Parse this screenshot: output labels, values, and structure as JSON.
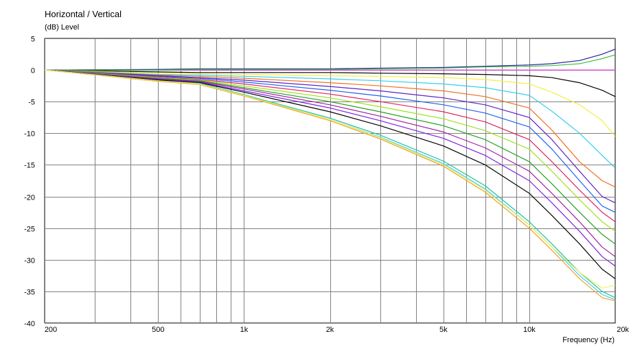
{
  "chart_data": {
    "type": "line",
    "title": "Horizontal / Vertical",
    "ylabel": "(dB)  Level",
    "xlabel": "Frequency  (Hz)",
    "x_scale": "log",
    "xlim": [
      200,
      20000
    ],
    "ylim": [
      -40,
      5
    ],
    "grid": true,
    "x_ticks": [
      {
        "value": 200,
        "label": "200"
      },
      {
        "value": 500,
        "label": "500"
      },
      {
        "value": 1000,
        "label": "1k"
      },
      {
        "value": 2000,
        "label": "2k"
      },
      {
        "value": 5000,
        "label": "5k"
      },
      {
        "value": 10000,
        "label": "10k"
      },
      {
        "value": 20000,
        "label": "20k"
      }
    ],
    "y_ticks": [
      {
        "value": 5,
        "label": "5"
      },
      {
        "value": 0,
        "label": "0"
      },
      {
        "value": -5,
        "label": "-5"
      },
      {
        "value": -10,
        "label": "-10"
      },
      {
        "value": -15,
        "label": "-15"
      },
      {
        "value": -20,
        "label": "-20"
      },
      {
        "value": -25,
        "label": "-25"
      },
      {
        "value": -30,
        "label": "-30"
      },
      {
        "value": -35,
        "label": "-35"
      },
      {
        "value": -40,
        "label": "-40"
      }
    ],
    "x_minor_grid": [
      300,
      400,
      600,
      700,
      800,
      900,
      3000,
      4000,
      6000,
      7000,
      8000,
      9000
    ],
    "x": [
      200,
      500,
      700,
      1000,
      2000,
      3000,
      5000,
      7000,
      10000,
      12000,
      15000,
      18000,
      20000
    ],
    "series": [
      {
        "color": "#e040e0",
        "values": [
          0,
          0,
          0,
          0,
          0,
          0,
          0,
          0,
          0,
          0,
          0,
          0,
          0
        ]
      },
      {
        "color": "#2020a0",
        "values": [
          0,
          0.1,
          0.2,
          0.2,
          0.2,
          0.3,
          0.4,
          0.6,
          0.8,
          1.0,
          1.5,
          2.5,
          3.3
        ]
      },
      {
        "color": "#40c040",
        "values": [
          0,
          0,
          0.1,
          0.1,
          0.1,
          0.2,
          0.3,
          0.5,
          0.6,
          0.7,
          1.0,
          1.8,
          2.4
        ]
      },
      {
        "color": "#000000",
        "values": [
          0,
          -0.3,
          -0.4,
          -0.4,
          -0.4,
          -0.5,
          -0.6,
          -0.7,
          -0.9,
          -1.2,
          -2.0,
          -3.2,
          -4.2
        ]
      },
      {
        "color": "#f0f040",
        "values": [
          0,
          -0.5,
          -0.6,
          -0.7,
          -0.9,
          -1.0,
          -1.2,
          -1.5,
          -2.2,
          -3.5,
          -5.5,
          -8.0,
          -10.5
        ]
      },
      {
        "color": "#30d0f0",
        "values": [
          0,
          -0.7,
          -0.8,
          -1.0,
          -1.4,
          -1.7,
          -2.2,
          -2.8,
          -4.0,
          -6.5,
          -10.0,
          -13.5,
          -15.5
        ]
      },
      {
        "color": "#f07020",
        "values": [
          0,
          -0.8,
          -1.0,
          -1.3,
          -2.0,
          -2.5,
          -3.3,
          -4.2,
          -6.0,
          -9.5,
          -14.5,
          -17.5,
          -18.5
        ]
      },
      {
        "color": "#6020c0",
        "values": [
          0,
          -0.9,
          -1.2,
          -1.6,
          -2.6,
          -3.3,
          -4.4,
          -5.5,
          -7.5,
          -11.0,
          -16.0,
          -20.0,
          -21.0
        ]
      },
      {
        "color": "#2060f0",
        "values": [
          0,
          -1.0,
          -1.3,
          -1.9,
          -3.2,
          -4.1,
          -5.5,
          -6.8,
          -9.0,
          -12.5,
          -17.5,
          -21.5,
          -22.5
        ]
      },
      {
        "color": "#e02060",
        "values": [
          0,
          -1.1,
          -1.5,
          -2.2,
          -3.8,
          -5.0,
          -6.6,
          -8.2,
          -11.0,
          -14.5,
          -19.0,
          -22.5,
          -24.0
        ]
      },
      {
        "color": "#a0e020",
        "values": [
          0,
          -1.2,
          -1.6,
          -2.5,
          -4.4,
          -5.8,
          -7.7,
          -9.6,
          -12.5,
          -16.0,
          -20.5,
          -24.0,
          -25.5
        ]
      },
      {
        "color": "#20a020",
        "values": [
          0,
          -1.3,
          -1.7,
          -2.8,
          -5.0,
          -6.6,
          -8.8,
          -11.0,
          -14.5,
          -18.0,
          -22.5,
          -26.0,
          -27.5
        ]
      },
      {
        "color": "#a020a0",
        "values": [
          0,
          -1.4,
          -1.8,
          -3.0,
          -5.5,
          -7.3,
          -9.8,
          -12.3,
          -16.0,
          -19.5,
          -24.0,
          -28.0,
          -29.5
        ]
      },
      {
        "color": "#8020e0",
        "values": [
          0,
          -1.5,
          -1.9,
          -3.3,
          -6.0,
          -8.0,
          -10.8,
          -13.5,
          -17.5,
          -21.0,
          -25.5,
          -29.5,
          -31.0
        ]
      },
      {
        "color": "#000000",
        "values": [
          0,
          -1.6,
          -2.0,
          -3.5,
          -6.6,
          -8.8,
          -12.0,
          -15.0,
          -19.5,
          -23.0,
          -27.5,
          -31.5,
          -33.0
        ]
      },
      {
        "color": "#20c0a0",
        "values": [
          0,
          -1.7,
          -2.1,
          -3.9,
          -7.6,
          -10.3,
          -14.4,
          -18.3,
          -24.0,
          -27.5,
          -32.0,
          -35.0,
          -36.0
        ]
      },
      {
        "color": "#40d0f0",
        "values": [
          0,
          -1.7,
          -2.2,
          -4.0,
          -7.8,
          -10.6,
          -14.8,
          -18.8,
          -24.5,
          -28.0,
          -32.5,
          -35.5,
          -36.3
        ]
      },
      {
        "color": "#f0a020",
        "values": [
          0,
          -1.8,
          -2.3,
          -4.1,
          -8.0,
          -10.9,
          -15.2,
          -19.3,
          -25.0,
          -28.5,
          -33.0,
          -36.0,
          -36.5
        ]
      },
      {
        "color": "#f0f060",
        "values": [
          0,
          -1.7,
          -2.2,
          -4.0,
          -7.8,
          -10.7,
          -15.0,
          -19.0,
          -24.5,
          -28.0,
          -32.0,
          -34.5,
          -34.0
        ]
      }
    ]
  }
}
